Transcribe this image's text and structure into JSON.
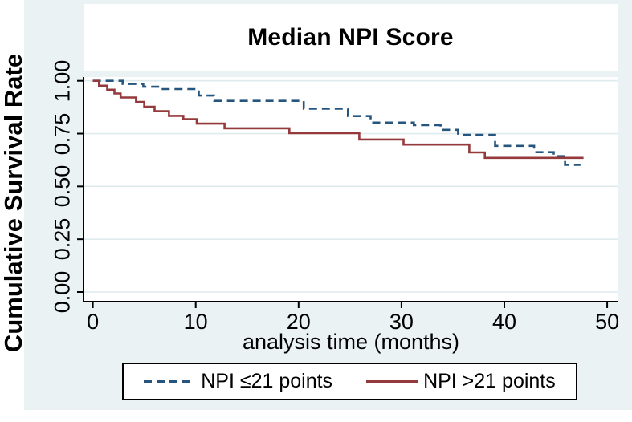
{
  "figure": {
    "region_color": "#eaf2f3",
    "plot_background": "#ffffff",
    "axis_color": "#000000"
  },
  "chart_data": {
    "type": "line",
    "subtype": "kaplan-meier-step",
    "title": "Median NPI Score",
    "xlabel": "analysis time (months)",
    "ylabel": "Cumulative Survival Rate",
    "xlim": [
      0,
      50
    ],
    "ylim": [
      0.0,
      1.0
    ],
    "xticks": [
      "0",
      "10",
      "20",
      "30",
      "40",
      "50"
    ],
    "yticks": [
      "0.00",
      "0.25",
      "0.50",
      "0.75",
      "1.00"
    ],
    "grid": "horizontal",
    "grid_color": "#dfeaed",
    "legend_position": "bottom",
    "series": [
      {
        "name": "NPI ≤21 points",
        "color": "#26567e",
        "line_style": "dashed",
        "points": [
          [
            0,
            1.0
          ],
          [
            2.9,
            0.985
          ],
          [
            4.9,
            0.972
          ],
          [
            6.5,
            0.961
          ],
          [
            10.3,
            0.93
          ],
          [
            11.8,
            0.905
          ],
          [
            20.5,
            0.868
          ],
          [
            24.8,
            0.833
          ],
          [
            27.0,
            0.802
          ],
          [
            31.2,
            0.79
          ],
          [
            33.8,
            0.768
          ],
          [
            35.5,
            0.744
          ],
          [
            39.1,
            0.692
          ],
          [
            42.9,
            0.662
          ],
          [
            44.8,
            0.643
          ],
          [
            45.9,
            0.602
          ]
        ],
        "end_time": 47.4
      },
      {
        "name": "NPI >21 points",
        "color": "#953a3c",
        "line_style": "solid",
        "points": [
          [
            0,
            1.0
          ],
          [
            0.6,
            0.977
          ],
          [
            1.4,
            0.958
          ],
          [
            2.1,
            0.94
          ],
          [
            2.7,
            0.921
          ],
          [
            4.2,
            0.9
          ],
          [
            5.0,
            0.877
          ],
          [
            6.0,
            0.856
          ],
          [
            7.4,
            0.834
          ],
          [
            8.8,
            0.818
          ],
          [
            10.1,
            0.797
          ],
          [
            12.8,
            0.775
          ],
          [
            19.1,
            0.752
          ],
          [
            25.9,
            0.722
          ],
          [
            30.2,
            0.698
          ],
          [
            36.6,
            0.661
          ],
          [
            38.1,
            0.635
          ]
        ],
        "end_time": 47.7
      }
    ]
  }
}
